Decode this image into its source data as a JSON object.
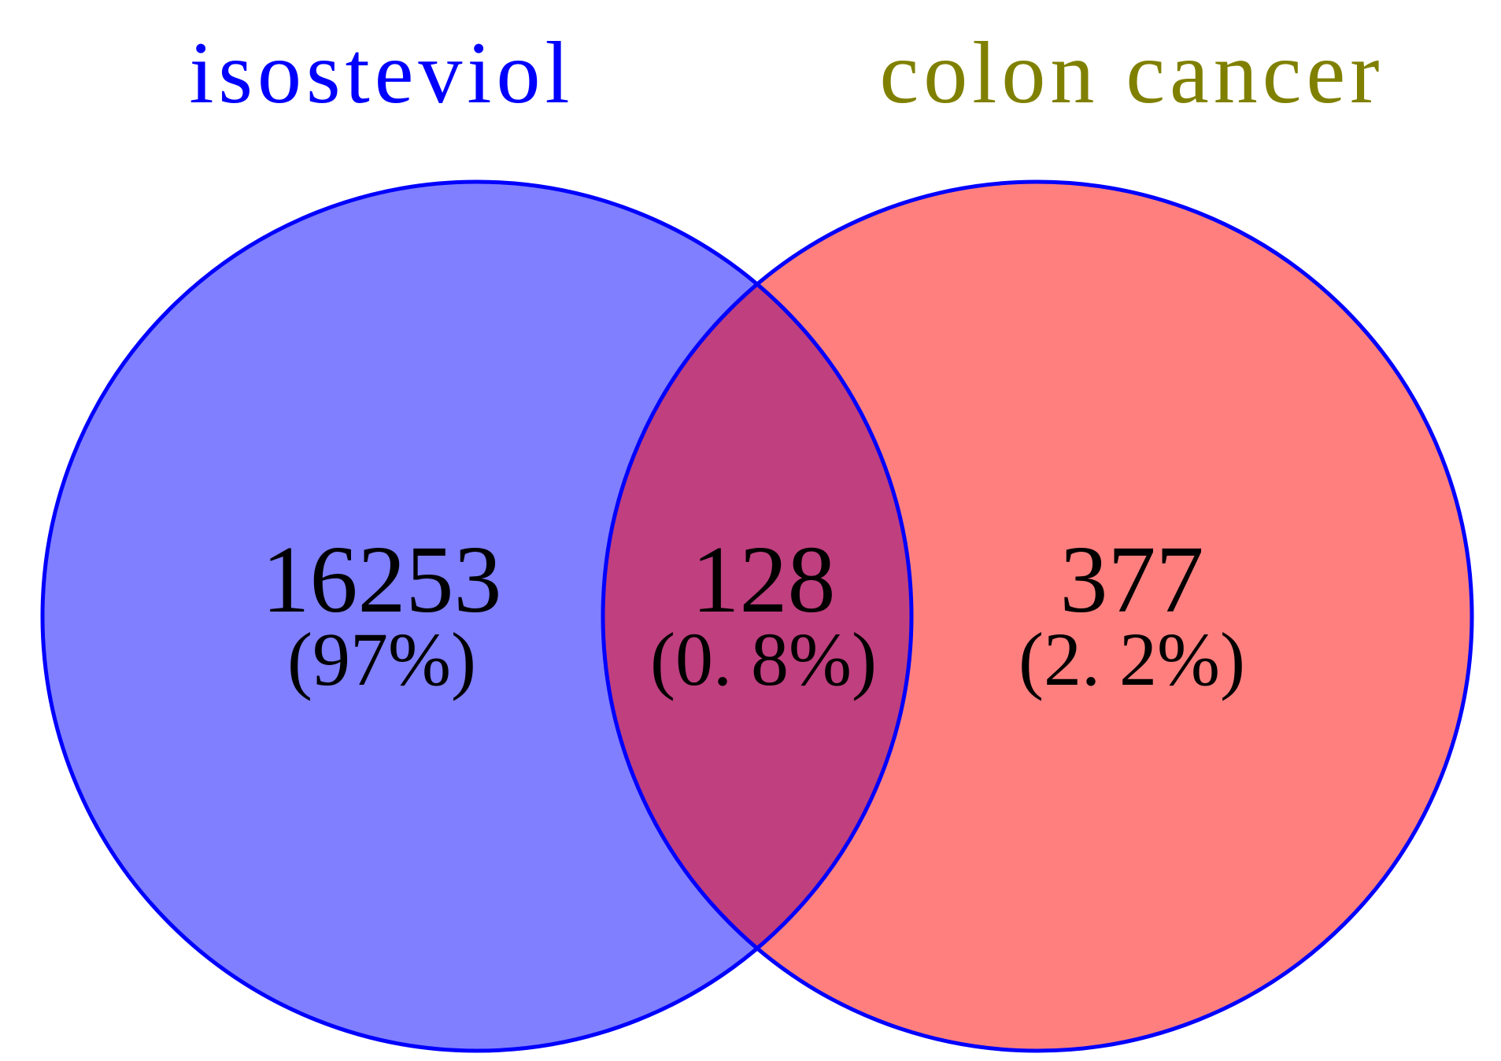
{
  "chart_data": {
    "type": "venn",
    "sets": [
      {
        "name": "isosteviol",
        "color": "#0000ff",
        "label_color": "#0000ff"
      },
      {
        "name": "colon cancer",
        "color": "#ff0000",
        "label_color": "#808000"
      }
    ],
    "regions": [
      {
        "sets": [
          0
        ],
        "value": 16253,
        "percent": 97,
        "percent_label": "(97%)"
      },
      {
        "sets": [
          0,
          1
        ],
        "value": 128,
        "percent": 0.8,
        "percent_label": "(0. 8%)"
      },
      {
        "sets": [
          1
        ],
        "value": 377,
        "percent": 2.2,
        "percent_label": "(2. 2%)"
      }
    ],
    "outline_color": "#0000ff"
  }
}
